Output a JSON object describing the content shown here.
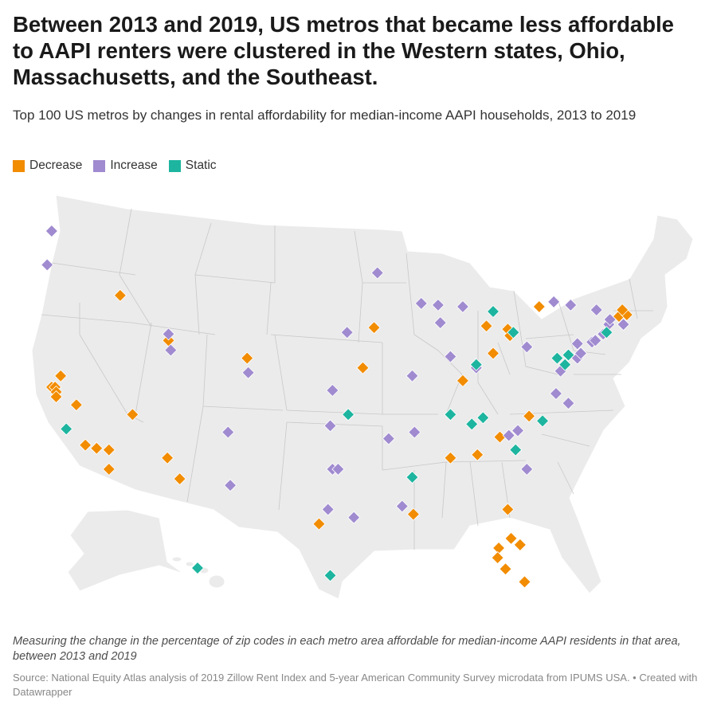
{
  "header": {
    "title": "Between 2013 and 2019, US metros that became less affordable to AAPI renters were clustered in the Western states, Ohio, Massachusetts, and the Southeast.",
    "subtitle": "Top 100 US metros by changes in rental affordability for median-income AAPI households, 2013 to 2019"
  },
  "legend": [
    {
      "label": "Decrease",
      "key": "decrease",
      "color": "#f28c00"
    },
    {
      "label": "Increase",
      "key": "increase",
      "color": "#a08bd0"
    },
    {
      "label": "Static",
      "key": "static",
      "color": "#1db59f"
    }
  ],
  "colors": {
    "land": "#ebebeb",
    "border": "#ffffff",
    "decrease": "#f28c00",
    "increase": "#a08bd0",
    "static": "#1db59f"
  },
  "chart_data": {
    "type": "map",
    "description_key": "US metro areas marked by change category",
    "categories": [
      "Decrease",
      "Increase",
      "Static"
    ],
    "metros": [
      {
        "lon": -122.3,
        "lat": 47.6,
        "category": "increase"
      },
      {
        "lon": -122.7,
        "lat": 45.5,
        "category": "increase"
      },
      {
        "lon": -116.2,
        "lat": 43.6,
        "category": "decrease"
      },
      {
        "lon": -111.9,
        "lat": 40.8,
        "category": "decrease"
      },
      {
        "lon": -111.9,
        "lat": 41.2,
        "category": "increase"
      },
      {
        "lon": -111.7,
        "lat": 40.2,
        "category": "increase"
      },
      {
        "lon": -121.5,
        "lat": 38.6,
        "category": "decrease"
      },
      {
        "lon": -122.3,
        "lat": 37.9,
        "category": "decrease"
      },
      {
        "lon": -122.0,
        "lat": 37.9,
        "category": "decrease"
      },
      {
        "lon": -121.9,
        "lat": 37.6,
        "category": "decrease"
      },
      {
        "lon": -121.9,
        "lat": 37.3,
        "category": "decrease"
      },
      {
        "lon": -120.1,
        "lat": 36.8,
        "category": "decrease"
      },
      {
        "lon": -121.0,
        "lat": 35.3,
        "category": "static"
      },
      {
        "lon": -119.3,
        "lat": 34.3,
        "category": "decrease"
      },
      {
        "lon": -118.3,
        "lat": 34.1,
        "category": "decrease"
      },
      {
        "lon": -117.2,
        "lat": 32.8,
        "category": "decrease"
      },
      {
        "lon": -117.2,
        "lat": 34.0,
        "category": "decrease"
      },
      {
        "lon": -115.1,
        "lat": 36.2,
        "category": "decrease"
      },
      {
        "lon": -112.0,
        "lat": 33.5,
        "category": "decrease"
      },
      {
        "lon": -110.9,
        "lat": 32.2,
        "category": "decrease"
      },
      {
        "lon": -104.9,
        "lat": 39.7,
        "category": "decrease"
      },
      {
        "lon": -104.8,
        "lat": 38.8,
        "category": "increase"
      },
      {
        "lon": -106.6,
        "lat": 35.1,
        "category": "increase"
      },
      {
        "lon": -106.4,
        "lat": 31.8,
        "category": "increase"
      },
      {
        "lon": -97.5,
        "lat": 35.5,
        "category": "increase"
      },
      {
        "lon": -95.9,
        "lat": 36.2,
        "category": "static"
      },
      {
        "lon": -97.3,
        "lat": 37.7,
        "category": "increase"
      },
      {
        "lon": -96.0,
        "lat": 41.3,
        "category": "increase"
      },
      {
        "lon": -94.6,
        "lat": 39.1,
        "category": "decrease"
      },
      {
        "lon": -93.6,
        "lat": 41.6,
        "category": "decrease"
      },
      {
        "lon": -93.3,
        "lat": 45.0,
        "category": "increase"
      },
      {
        "lon": -97.3,
        "lat": 32.8,
        "category": "increase"
      },
      {
        "lon": -96.8,
        "lat": 32.8,
        "category": "increase"
      },
      {
        "lon": -97.7,
        "lat": 30.3,
        "category": "increase"
      },
      {
        "lon": -98.5,
        "lat": 29.4,
        "category": "decrease"
      },
      {
        "lon": -95.4,
        "lat": 29.8,
        "category": "increase"
      },
      {
        "lon": -97.5,
        "lat": 26.2,
        "category": "static"
      },
      {
        "lon": -92.3,
        "lat": 34.7,
        "category": "increase"
      },
      {
        "lon": -90.2,
        "lat": 38.6,
        "category": "increase"
      },
      {
        "lon": -90.0,
        "lat": 35.1,
        "category": "increase"
      },
      {
        "lon": -90.2,
        "lat": 32.3,
        "category": "static"
      },
      {
        "lon": -91.1,
        "lat": 30.5,
        "category": "increase"
      },
      {
        "lon": -90.1,
        "lat": 30.0,
        "category": "decrease"
      },
      {
        "lon": -89.4,
        "lat": 43.1,
        "category": "increase"
      },
      {
        "lon": -87.9,
        "lat": 43.0,
        "category": "increase"
      },
      {
        "lon": -87.7,
        "lat": 41.9,
        "category": "increase"
      },
      {
        "lon": -86.8,
        "lat": 39.8,
        "category": "increase"
      },
      {
        "lon": -85.7,
        "lat": 38.3,
        "category": "decrease"
      },
      {
        "lon": -84.5,
        "lat": 39.1,
        "category": "increase"
      },
      {
        "lon": -84.5,
        "lat": 39.3,
        "category": "static"
      },
      {
        "lon": -85.7,
        "lat": 42.9,
        "category": "increase"
      },
      {
        "lon": -83.0,
        "lat": 42.6,
        "category": "static"
      },
      {
        "lon": -83.6,
        "lat": 41.7,
        "category": "decrease"
      },
      {
        "lon": -83.0,
        "lat": 40.0,
        "category": "decrease"
      },
      {
        "lon": -81.7,
        "lat": 41.5,
        "category": "decrease"
      },
      {
        "lon": -81.5,
        "lat": 41.1,
        "category": "decrease"
      },
      {
        "lon": -81.2,
        "lat": 41.3,
        "category": "static"
      },
      {
        "lon": -80.0,
        "lat": 40.4,
        "category": "increase"
      },
      {
        "lon": -86.8,
        "lat": 36.2,
        "category": "static"
      },
      {
        "lon": -84.9,
        "lat": 35.6,
        "category": "static"
      },
      {
        "lon": -83.9,
        "lat": 36.0,
        "category": "static"
      },
      {
        "lon": -86.8,
        "lat": 33.5,
        "category": "decrease"
      },
      {
        "lon": -84.4,
        "lat": 33.7,
        "category": "decrease"
      },
      {
        "lon": -82.4,
        "lat": 34.8,
        "category": "decrease"
      },
      {
        "lon": -81.6,
        "lat": 34.9,
        "category": "increase"
      },
      {
        "lon": -80.8,
        "lat": 35.2,
        "category": "increase"
      },
      {
        "lon": -81.0,
        "lat": 34.0,
        "category": "static"
      },
      {
        "lon": -80.0,
        "lat": 32.8,
        "category": "increase"
      },
      {
        "lon": -79.8,
        "lat": 36.1,
        "category": "decrease"
      },
      {
        "lon": -78.6,
        "lat": 35.8,
        "category": "static"
      },
      {
        "lon": -77.4,
        "lat": 37.5,
        "category": "increase"
      },
      {
        "lon": -76.3,
        "lat": 36.9,
        "category": "increase"
      },
      {
        "lon": -81.7,
        "lat": 30.3,
        "category": "decrease"
      },
      {
        "lon": -81.4,
        "lat": 28.5,
        "category": "decrease"
      },
      {
        "lon": -82.5,
        "lat": 27.9,
        "category": "decrease"
      },
      {
        "lon": -82.6,
        "lat": 27.3,
        "category": "decrease"
      },
      {
        "lon": -81.9,
        "lat": 26.6,
        "category": "decrease"
      },
      {
        "lon": -80.6,
        "lat": 28.1,
        "category": "decrease"
      },
      {
        "lon": -80.2,
        "lat": 25.8,
        "category": "decrease"
      },
      {
        "lon": -77.0,
        "lat": 38.9,
        "category": "increase"
      },
      {
        "lon": -76.6,
        "lat": 39.3,
        "category": "static"
      },
      {
        "lon": -77.3,
        "lat": 39.7,
        "category": "static"
      },
      {
        "lon": -76.3,
        "lat": 39.9,
        "category": "static"
      },
      {
        "lon": -75.5,
        "lat": 39.7,
        "category": "increase"
      },
      {
        "lon": -75.2,
        "lat": 40.0,
        "category": "increase"
      },
      {
        "lon": -75.5,
        "lat": 40.6,
        "category": "increase"
      },
      {
        "lon": -74.2,
        "lat": 40.7,
        "category": "increase"
      },
      {
        "lon": -73.9,
        "lat": 40.8,
        "category": "increase"
      },
      {
        "lon": -73.2,
        "lat": 41.2,
        "category": "increase"
      },
      {
        "lon": -72.7,
        "lat": 41.8,
        "category": "increase"
      },
      {
        "lon": -72.9,
        "lat": 41.3,
        "category": "static"
      },
      {
        "lon": -73.8,
        "lat": 42.7,
        "category": "increase"
      },
      {
        "lon": -76.1,
        "lat": 43.0,
        "category": "increase"
      },
      {
        "lon": -77.6,
        "lat": 43.2,
        "category": "increase"
      },
      {
        "lon": -78.9,
        "lat": 42.9,
        "category": "decrease"
      },
      {
        "lon": -72.6,
        "lat": 42.1,
        "category": "increase"
      },
      {
        "lon": -71.8,
        "lat": 42.3,
        "category": "decrease"
      },
      {
        "lon": -71.1,
        "lat": 42.4,
        "category": "decrease"
      },
      {
        "lon": -71.4,
        "lat": 41.8,
        "category": "increase"
      },
      {
        "lon": -71.5,
        "lat": 42.7,
        "category": "decrease"
      },
      {
        "lon": -157.9,
        "lat": 21.3,
        "category": "static"
      }
    ]
  },
  "notes": {
    "description": "Measuring the change in the percentage of zip codes in each metro area affordable for median-income AAPI residents in that area, between 2013 and 2019",
    "source": "Source: National Equity Atlas analysis of 2019 Zillow Rent Index and 5-year American Community Survey microdata from IPUMS USA. • Created with Datawrapper"
  }
}
